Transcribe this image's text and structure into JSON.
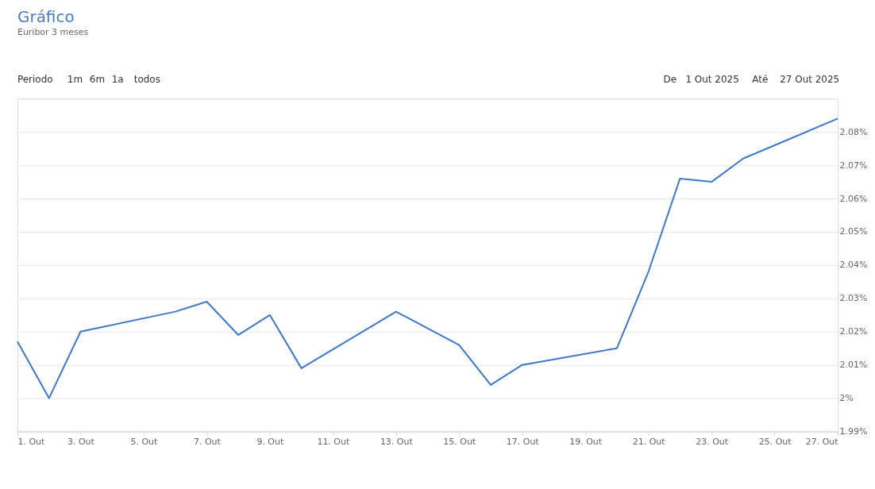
{
  "chart_data": {
    "type": "line",
    "title": "Gráfico",
    "subtitle": "Euribor 3 meses",
    "annotations": [
      "Periodo",
      "1m",
      "6m",
      "1a",
      "todos",
      "De",
      "1 Out 2025",
      "Até",
      "27 Out 2025"
    ],
    "x": [
      "2025-10-01",
      "2025-10-02",
      "2025-10-03",
      "2025-10-06",
      "2025-10-07",
      "2025-10-08",
      "2025-10-09",
      "2025-10-10",
      "2025-10-13",
      "2025-10-15",
      "2025-10-16",
      "2025-10-17",
      "2025-10-20",
      "2025-10-21",
      "2025-10-22",
      "2025-10-23",
      "2025-10-24",
      "2025-10-27"
    ],
    "series": [
      {
        "color": "#3f78c9",
        "values": [
          2.017,
          2.0,
          2.02,
          2.026,
          2.029,
          2.019,
          2.025,
          2.009,
          2.026,
          2.016,
          2.004,
          2.01,
          2.015,
          2.038,
          2.066,
          2.065,
          2.072,
          2.084
        ]
      }
    ],
    "xlim": [
      "2025-10-01",
      "2025-10-27"
    ],
    "xticks": [
      {
        "value": "2025-10-01",
        "label": "1. Out"
      },
      {
        "value": "2025-10-03",
        "label": "3. Out"
      },
      {
        "value": "2025-10-05",
        "label": "5. Out"
      },
      {
        "value": "2025-10-07",
        "label": "7. Out"
      },
      {
        "value": "2025-10-09",
        "label": "9. Out"
      },
      {
        "value": "2025-10-11",
        "label": "11. Out"
      },
      {
        "value": "2025-10-13",
        "label": "13. Out"
      },
      {
        "value": "2025-10-15",
        "label": "15. Out"
      },
      {
        "value": "2025-10-17",
        "label": "17. Out"
      },
      {
        "value": "2025-10-19",
        "label": "19. Out"
      },
      {
        "value": "2025-10-21",
        "label": "21. Out"
      },
      {
        "value": "2025-10-23",
        "label": "23. Out"
      },
      {
        "value": "2025-10-25",
        "label": "25. Out"
      },
      {
        "value": "2025-10-27",
        "label": "27. Out"
      }
    ],
    "ylim": [
      1.99,
      2.09
    ],
    "yticks": [
      {
        "value": 1.99,
        "label": "1.99%"
      },
      {
        "value": 2.0,
        "label": "2%"
      },
      {
        "value": 2.01,
        "label": "2.01%"
      },
      {
        "value": 2.02,
        "label": "2.02%"
      },
      {
        "value": 2.03,
        "label": "2.03%"
      },
      {
        "value": 2.04,
        "label": "2.04%"
      },
      {
        "value": 2.05,
        "label": "2.05%"
      },
      {
        "value": 2.06,
        "label": "2.06%"
      },
      {
        "value": 2.07,
        "label": "2.07%"
      },
      {
        "value": 2.08,
        "label": "2.08%"
      },
      {
        "value": 2.09,
        "label": null
      }
    ],
    "grid": "y",
    "marker": "none",
    "line_style": "solid"
  }
}
